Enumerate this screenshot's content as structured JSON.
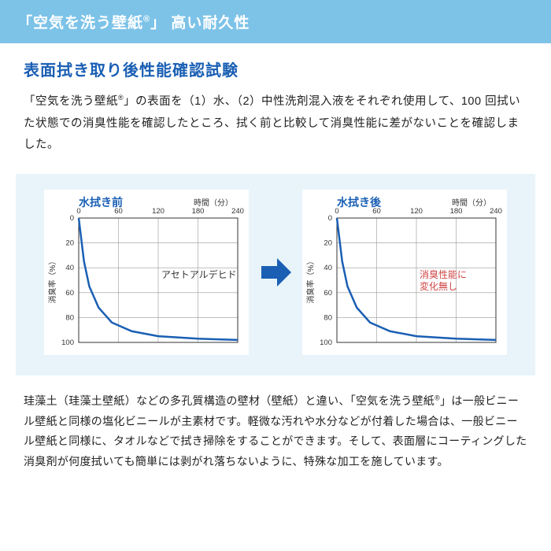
{
  "banner": {
    "text_pre": "「空気を洗う壁紙",
    "text_reg": "®",
    "text_post": "」 高い耐久性"
  },
  "section_title": "表面拭き取り後性能確認試験",
  "intro": "「空気を洗う壁紙®」の表面を（1）水、（2）中性洗剤混入液をそれぞれ使用して、100 回拭いた状態での消臭性能を確認したところ、拭く前と比較して消臭性能に差がないことを確認しました。",
  "charts": {
    "left": {
      "title": "水拭き前",
      "xlabel": "時間（分）",
      "ylabel": "消臭率（%）",
      "x_ticks": [
        0,
        60,
        120,
        180,
        240
      ],
      "y_ticks": [
        0,
        20,
        40,
        60,
        80,
        100
      ],
      "annotation": "アセトアルデヒド",
      "annotation_color": "#333333",
      "series": [
        {
          "x": 0,
          "y": 0
        },
        {
          "x": 8,
          "y": 35
        },
        {
          "x": 16,
          "y": 55
        },
        {
          "x": 30,
          "y": 72
        },
        {
          "x": 50,
          "y": 84
        },
        {
          "x": 80,
          "y": 91
        },
        {
          "x": 120,
          "y": 95
        },
        {
          "x": 180,
          "y": 97
        },
        {
          "x": 240,
          "y": 98
        }
      ],
      "line_color": "#1a5fb4",
      "line_width": 2.5,
      "grid_color": "#999999",
      "bg": "#ffffff",
      "xlim": [
        0,
        240
      ],
      "ylim": [
        0,
        100
      ]
    },
    "right": {
      "title": "水拭き後",
      "xlabel": "時間（分）",
      "ylabel": "消臭率（%）",
      "x_ticks": [
        0,
        60,
        120,
        180,
        240
      ],
      "y_ticks": [
        0,
        20,
        40,
        60,
        80,
        100
      ],
      "annotation": "消臭性能に\n変化無し",
      "annotation_color": "#d04545",
      "series": [
        {
          "x": 0,
          "y": 0
        },
        {
          "x": 8,
          "y": 35
        },
        {
          "x": 16,
          "y": 55
        },
        {
          "x": 30,
          "y": 72
        },
        {
          "x": 50,
          "y": 84
        },
        {
          "x": 80,
          "y": 91
        },
        {
          "x": 120,
          "y": 95
        },
        {
          "x": 180,
          "y": 97
        },
        {
          "x": 240,
          "y": 98
        }
      ],
      "line_color": "#1a5fb4",
      "line_width": 2.5,
      "grid_color": "#999999",
      "bg": "#ffffff",
      "xlim": [
        0,
        240
      ],
      "ylim": [
        0,
        100
      ]
    },
    "arrow_color": "#1a5fb4"
  },
  "footer": "珪藻土（珪藻土壁紙）などの多孔質構造の壁材（壁紙）と違い、「空気を洗う壁紙®」は一般ビニール壁紙と同様の塩化ビニールが主素材です。軽微な汚れや水分などが付着した場合は、一般ビニール壁紙と同様に、タオルなどで拭き掃除をすることができます。そして、表面層にコーティングした消臭剤が何度拭いても簡単には剥がれ落ちないように、特殊な加工を施しています。"
}
